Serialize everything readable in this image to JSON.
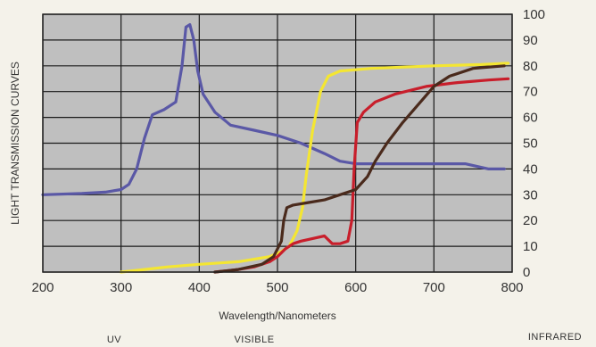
{
  "chart_data": {
    "type": "line",
    "ylabel": "LIGHT TRANSMISSION CURVES",
    "xlabel": "Wavelength/Nanometers",
    "xlim": [
      200,
      800
    ],
    "ylim": [
      0,
      100
    ],
    "x_ticks": [
      200,
      300,
      400,
      500,
      600,
      700,
      800
    ],
    "y_ticks": [
      0,
      10,
      20,
      30,
      40,
      50,
      60,
      70,
      80,
      90,
      100
    ],
    "grid": true,
    "region_labels": [
      "UV",
      "VISIBLE",
      "INFRARED"
    ],
    "series": [
      {
        "color": "#5a58a6",
        "points": [
          [
            200,
            30
          ],
          [
            250,
            30.5
          ],
          [
            280,
            31
          ],
          [
            300,
            32
          ],
          [
            310,
            34
          ],
          [
            320,
            40
          ],
          [
            330,
            52
          ],
          [
            340,
            61
          ],
          [
            355,
            63
          ],
          [
            370,
            66
          ],
          [
            378,
            80
          ],
          [
            383,
            95
          ],
          [
            388,
            96
          ],
          [
            393,
            90
          ],
          [
            398,
            78
          ],
          [
            405,
            69
          ],
          [
            420,
            62
          ],
          [
            440,
            57
          ],
          [
            470,
            55
          ],
          [
            500,
            53
          ],
          [
            530,
            50
          ],
          [
            560,
            46
          ],
          [
            580,
            43
          ],
          [
            600,
            42
          ],
          [
            640,
            42
          ],
          [
            700,
            42
          ],
          [
            740,
            42
          ],
          [
            770,
            40
          ],
          [
            790,
            40
          ]
        ]
      },
      {
        "color": "#f4e632",
        "points": [
          [
            300,
            0
          ],
          [
            330,
            1
          ],
          [
            360,
            2
          ],
          [
            400,
            3
          ],
          [
            450,
            4
          ],
          [
            490,
            6
          ],
          [
            505,
            8
          ],
          [
            515,
            10
          ],
          [
            525,
            16
          ],
          [
            532,
            25
          ],
          [
            537,
            38
          ],
          [
            545,
            55
          ],
          [
            555,
            70
          ],
          [
            565,
            76
          ],
          [
            580,
            78
          ],
          [
            620,
            79
          ],
          [
            700,
            80
          ],
          [
            760,
            80.5
          ],
          [
            795,
            81
          ]
        ]
      },
      {
        "color": "#c81e2b",
        "points": [
          [
            420,
            0
          ],
          [
            450,
            1
          ],
          [
            470,
            2
          ],
          [
            490,
            4
          ],
          [
            500,
            6
          ],
          [
            510,
            9
          ],
          [
            520,
            11
          ],
          [
            530,
            12
          ],
          [
            545,
            13
          ],
          [
            560,
            14
          ],
          [
            570,
            11
          ],
          [
            580,
            11
          ],
          [
            590,
            12
          ],
          [
            595,
            20
          ],
          [
            598,
            40
          ],
          [
            602,
            58
          ],
          [
            610,
            62
          ],
          [
            625,
            66
          ],
          [
            650,
            69
          ],
          [
            690,
            72
          ],
          [
            730,
            73.5
          ],
          [
            770,
            74.5
          ],
          [
            795,
            75
          ]
        ]
      },
      {
        "color": "#4a2a1c",
        "points": [
          [
            420,
            0
          ],
          [
            450,
            1
          ],
          [
            480,
            3
          ],
          [
            495,
            6
          ],
          [
            505,
            12
          ],
          [
            508,
            20
          ],
          [
            512,
            25
          ],
          [
            520,
            26
          ],
          [
            540,
            27
          ],
          [
            560,
            28
          ],
          [
            580,
            30
          ],
          [
            600,
            32
          ],
          [
            615,
            37
          ],
          [
            625,
            43
          ],
          [
            640,
            50
          ],
          [
            660,
            58
          ],
          [
            680,
            65
          ],
          [
            700,
            72
          ],
          [
            720,
            76
          ],
          [
            750,
            79
          ],
          [
            790,
            80
          ]
        ]
      }
    ]
  }
}
